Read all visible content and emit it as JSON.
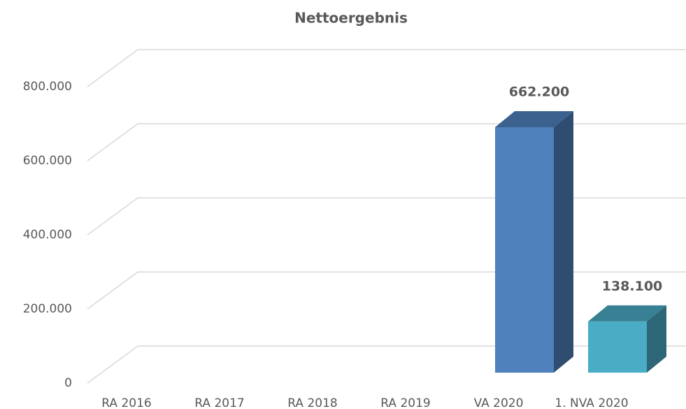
{
  "chart_data": {
    "type": "bar3d",
    "title": "Nettoergebnis",
    "categories": [
      "RA 2016",
      "RA 2017",
      "RA 2018",
      "RA 2019",
      "VA 2020",
      "1. NVA 2020"
    ],
    "values": [
      null,
      null,
      null,
      null,
      662200,
      138100
    ],
    "value_labels": [
      null,
      null,
      null,
      null,
      "662.200",
      "138.100"
    ],
    "colors": [
      null,
      null,
      null,
      null,
      "#4f81bd",
      "#4bacc6"
    ],
    "ylim": [
      0,
      800000
    ],
    "yticks": [
      {
        "value": 0,
        "label": "0"
      },
      {
        "value": 200000,
        "label": "200.000"
      },
      {
        "value": 400000,
        "label": "400.000"
      },
      {
        "value": 600000,
        "label": "600.000"
      },
      {
        "value": 800000,
        "label": "800.000"
      }
    ],
    "grid": true
  }
}
